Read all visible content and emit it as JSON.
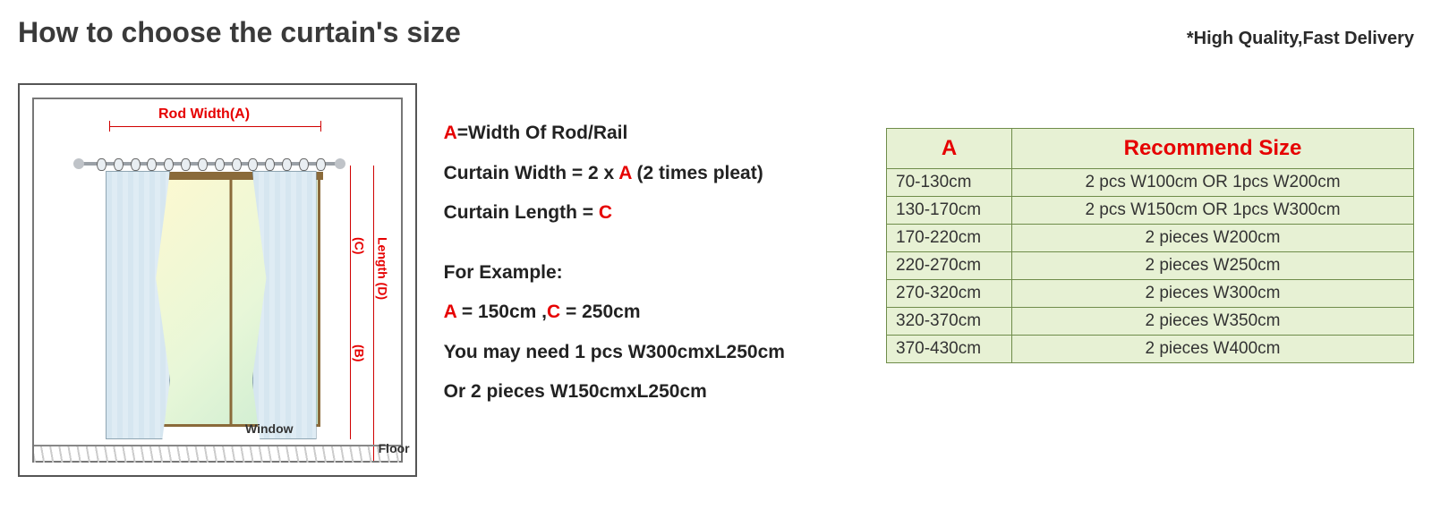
{
  "page": {
    "title": "How to choose the curtain's size",
    "tagline": "*High Quality,Fast Delivery"
  },
  "diagram": {
    "rod_width_label": "Rod Width(A)",
    "length_c": "(C)",
    "length_d": "Length (D)",
    "length_b": "(B)",
    "window_label": "Window",
    "floor_label": "Floor",
    "colors": {
      "border": "#555555",
      "label_red": "#e60000",
      "curtain_fill": "#eaf3f8",
      "window_frame": "#8a6a3a",
      "table_bg": "#e7f1d4",
      "table_border": "#6f8c4a"
    }
  },
  "explain": {
    "a_label_prefix": "A",
    "a_label_suffix": "=Width Of Rod/Rail",
    "width_line_pre": "Curtain Width = 2 x ",
    "width_line_A": "A",
    "width_line_post": " (2 times pleat)",
    "length_line_pre": "Curtain Length =  ",
    "length_line_C": "C",
    "example_header": "For Example:",
    "example_A_prefix": "A",
    "example_A_value": " = 150cm ,",
    "example_C_prefix": "C",
    "example_C_value": " = 250cm",
    "example_need": "You may need 1 pcs W300cmxL250cm",
    "example_or": "Or 2 pieces W150cmxL250cm"
  },
  "table": {
    "header_a": "A",
    "header_rec": "Recommend Size",
    "rows": [
      {
        "range": "70-130cm",
        "rec": "2  pcs  W100cm  OR  1pcs  W200cm"
      },
      {
        "range": "130-170cm",
        "rec": "2  pcs  W150cm  OR  1pcs  W300cm"
      },
      {
        "range": "170-220cm",
        "rec": "2  pieces  W200cm"
      },
      {
        "range": "220-270cm",
        "rec": "2  pieces  W250cm"
      },
      {
        "range": "270-320cm",
        "rec": "2  pieces  W300cm"
      },
      {
        "range": "320-370cm",
        "rec": "2  pieces  W350cm"
      },
      {
        "range": "370-430cm",
        "rec": "2  pieces  W400cm"
      }
    ]
  }
}
